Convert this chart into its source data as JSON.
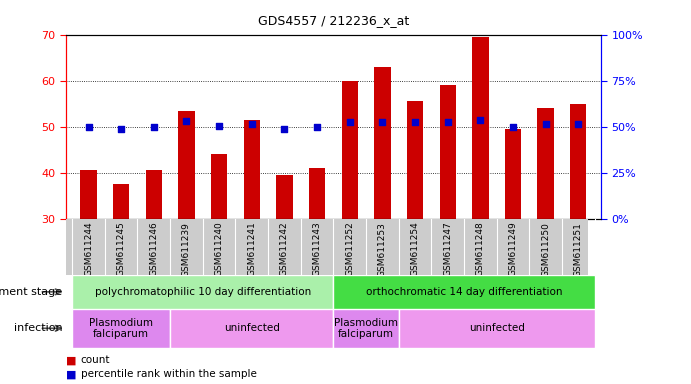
{
  "title": "GDS4557 / 212236_x_at",
  "samples": [
    "GSM611244",
    "GSM611245",
    "GSM611246",
    "GSM611239",
    "GSM611240",
    "GSM611241",
    "GSM611242",
    "GSM611243",
    "GSM611252",
    "GSM611253",
    "GSM611254",
    "GSM611247",
    "GSM611248",
    "GSM611249",
    "GSM611250",
    "GSM611251"
  ],
  "counts": [
    40.5,
    37.5,
    40.5,
    53.5,
    44.0,
    51.5,
    39.5,
    41.0,
    60.0,
    63.0,
    55.5,
    59.0,
    69.5,
    49.5,
    54.0,
    55.0
  ],
  "percentiles": [
    50.0,
    48.5,
    50.0,
    53.0,
    50.5,
    51.5,
    48.5,
    50.0,
    52.5,
    52.5,
    52.5,
    52.5,
    53.5,
    50.0,
    51.5,
    51.5
  ],
  "bar_color": "#cc0000",
  "dot_color": "#0000cc",
  "ylim_left": [
    30,
    70
  ],
  "ylim_right": [
    0,
    100
  ],
  "yticks_left": [
    30,
    40,
    50,
    60,
    70
  ],
  "yticks_right": [
    0,
    25,
    50,
    75,
    100
  ],
  "ytick_labels_right": [
    "0%",
    "25%",
    "50%",
    "75%",
    "100%"
  ],
  "dev_stage_groups": [
    {
      "label": "polychromatophilic 10 day differentiation",
      "start": 0,
      "end": 8,
      "color": "#aaf0aa"
    },
    {
      "label": "orthochromatic 14 day differentiation",
      "start": 8,
      "end": 16,
      "color": "#44dd44"
    }
  ],
  "infection_groups": [
    {
      "label": "Plasmodium\nfalciparum",
      "start": 0,
      "end": 3,
      "color": "#dd88ee"
    },
    {
      "label": "uninfected",
      "start": 3,
      "end": 8,
      "color": "#ee99ee"
    },
    {
      "label": "Plasmodium\nfalciparum",
      "start": 8,
      "end": 10,
      "color": "#dd88ee"
    },
    {
      "label": "uninfected",
      "start": 10,
      "end": 16,
      "color": "#ee99ee"
    }
  ],
  "bar_width": 0.5,
  "bar_bottom": 30,
  "xtick_bg": "#cccccc",
  "legend_count_color": "#cc0000",
  "legend_dot_color": "#0000cc"
}
